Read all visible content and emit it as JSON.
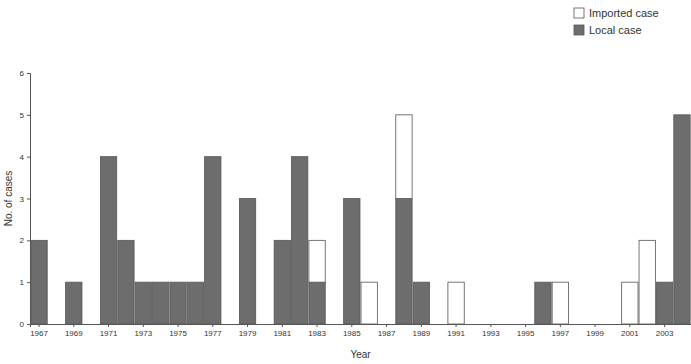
{
  "chart_data": {
    "type": "bar",
    "stacked": true,
    "legend": "upper right",
    "x_label": "Year",
    "y_label": "No. of cases",
    "categories": [
      1967,
      null,
      1969,
      null,
      1971,
      null,
      1973,
      null,
      1975,
      null,
      1977,
      null,
      1979,
      null,
      1981,
      null,
      1983,
      null,
      1985,
      null,
      1987,
      null,
      1989,
      null,
      1991,
      null,
      1993,
      null,
      1995,
      null,
      1997,
      null,
      1999,
      null,
      2001,
      null,
      2003,
      null
    ],
    "series": [
      {
        "name": "Local case",
        "color": "#6d6d6d",
        "values": [
          2,
          0,
          1,
          0,
          4,
          2,
          1,
          1,
          1,
          1,
          4,
          0,
          3,
          0,
          2,
          4,
          1,
          0,
          3,
          0,
          0,
          3,
          1,
          0,
          0,
          0,
          0,
          0,
          0,
          1,
          0,
          0,
          0,
          0,
          0,
          0,
          1,
          5
        ]
      },
      {
        "name": "Imported case",
        "color": "#ffffff",
        "values": [
          0,
          0,
          0,
          0,
          0,
          0,
          0,
          0,
          0,
          0,
          0,
          0,
          0,
          0,
          0,
          0,
          1,
          0,
          0,
          1,
          0,
          2,
          0,
          0,
          1,
          0,
          0,
          0,
          0,
          0,
          1,
          0,
          0,
          0,
          1,
          2,
          0,
          0
        ]
      }
    ],
    "ylim": [
      0,
      6
    ],
    "yticks": [
      0,
      1,
      2,
      3,
      4,
      5,
      6
    ]
  }
}
